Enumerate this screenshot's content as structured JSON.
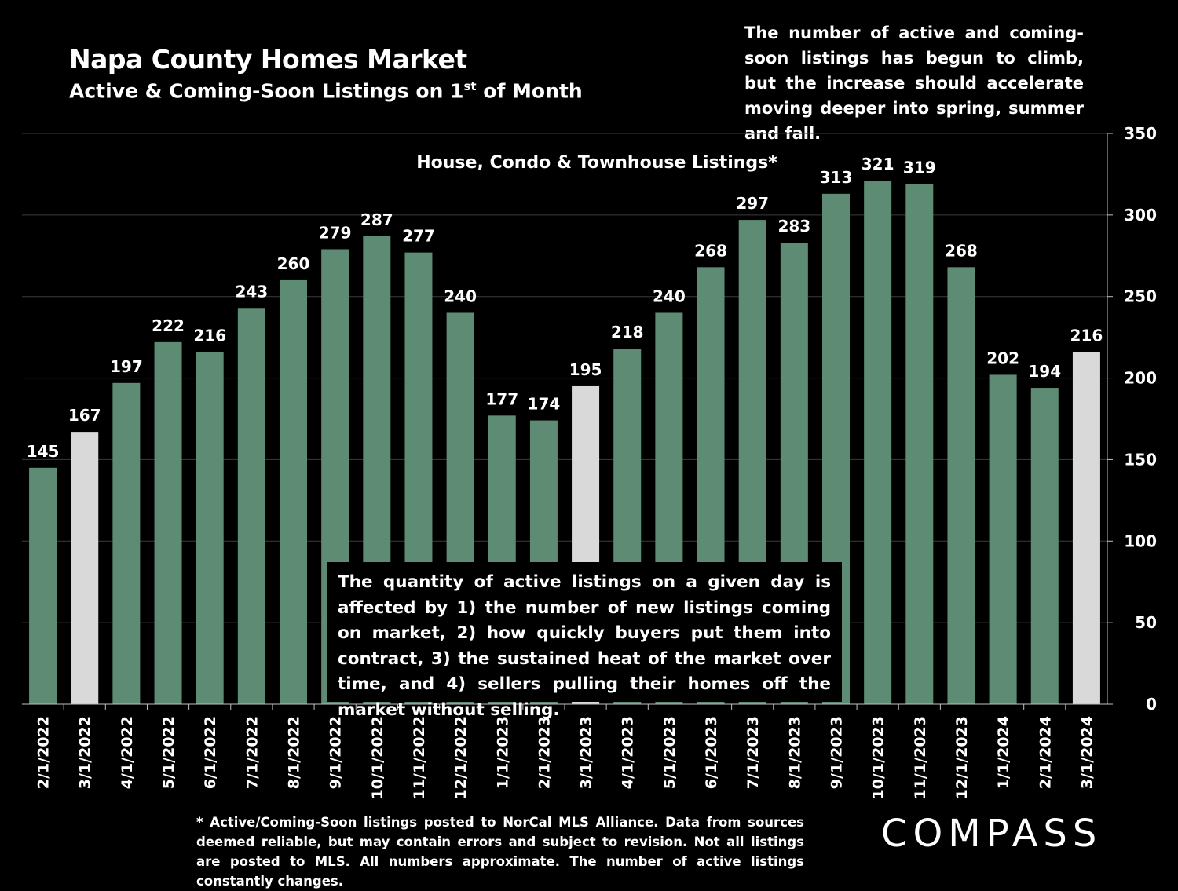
{
  "header": {
    "title": "Napa County Homes Market",
    "subtitle_main": "Active & Coming-Soon Listings on 1",
    "subtitle_sup": "st",
    "subtitle_tail": " of Month"
  },
  "top_note": "The number of active and coming-soon listings has begun to climb, but the increase should accelerate moving deeper into spring, summer and fall.",
  "overlay_note": "The quantity of active listings on a given day is affected by 1) the number of new listings coming on market, 2) how quickly buyers put them into contract, 3) the sustained heat of the market over time, and 4) sellers pulling their homes off the market without selling.",
  "footnote": "* Active/Coming-Soon listings posted to NorCal MLS Alliance.  Data from sources deemed reliable, but may contain errors and subject to revision.  Not all listings are posted to MLS. All numbers approximate. The number of active listings constantly changes.",
  "logo": "COMPASS",
  "colors": {
    "background": "#000000",
    "bar_default": "#5e8b73",
    "bar_highlight": "#d9d9d9",
    "gridline": "#3a3a3a",
    "text": "#ffffff"
  },
  "chart_data": {
    "type": "bar",
    "title": "House, Condo & Townhouse Listings*",
    "categories": [
      "2/1/2022",
      "3/1/2022",
      "4/1/2022",
      "5/1/2022",
      "6/1/2022",
      "7/1/2022",
      "8/1/2022",
      "9/1/2022",
      "10/1/2022",
      "11/1/2022",
      "12/1/2022",
      "1/1/2023",
      "2/1/2023",
      "3/1/2023",
      "4/1/2023",
      "5/1/2023",
      "6/1/2023",
      "7/1/2023",
      "8/1/2023",
      "9/1/2023",
      "10/1/2023",
      "11/1/2023",
      "12/1/2023",
      "1/1/2024",
      "2/1/2024",
      "3/1/2024"
    ],
    "values": [
      145,
      167,
      197,
      222,
      216,
      243,
      260,
      279,
      287,
      277,
      240,
      177,
      174,
      195,
      218,
      240,
      268,
      297,
      283,
      313,
      321,
      319,
      268,
      202,
      194,
      216
    ],
    "highlighted": [
      "3/1/2022",
      "3/1/2023",
      "3/1/2024"
    ],
    "ylim": [
      0,
      350
    ],
    "yticks": [
      0,
      50,
      100,
      150,
      200,
      250,
      300,
      350
    ],
    "y_axis_side": "right",
    "grid": true,
    "xlabel": "",
    "ylabel": ""
  }
}
